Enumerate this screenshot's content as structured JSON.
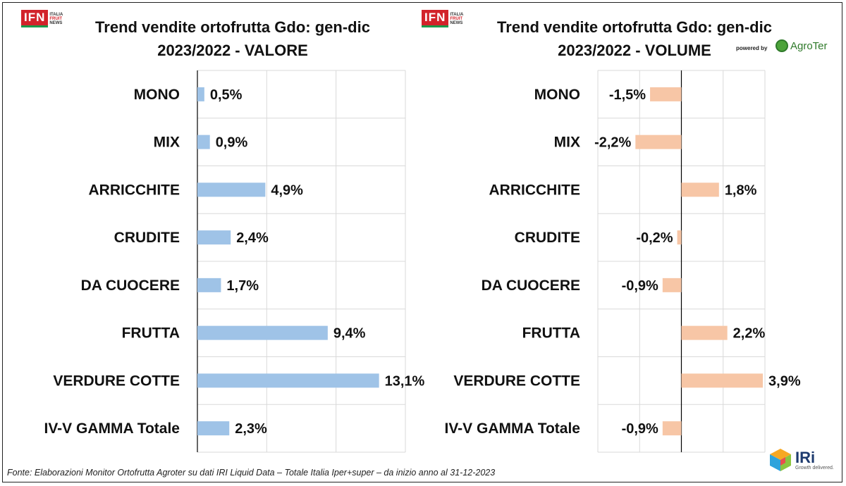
{
  "logo": {
    "main": "IFN",
    "sub_line1": "ITALIA",
    "sub_line2": "FRUIT",
    "sub_line3": "NEWS"
  },
  "powered_by": "powered by",
  "agroter": "AgroTer",
  "footnote": "Fonte: Elaborazioni Monitor Ortofrutta Agroter su dati IRI Liquid Data – Totale Italia Iper+super –  da inizio anno al 31-12-2023",
  "iri": {
    "name": "IRi",
    "tagline": "Growth delivered."
  },
  "colors": {
    "valore_bar": "#9fc3e7",
    "volume_bar": "#f7c6a6",
    "grid": "#d9d9d9",
    "axis": "#000000"
  },
  "chart_data": [
    {
      "type": "bar",
      "orientation": "horizontal",
      "title_line1": "Trend vendite ortofrutta Gdo: gen-dic",
      "title_line2": "2023/2022 - VALORE",
      "categories": [
        "MONO",
        "MIX",
        "ARRICCHITE",
        "CRUDITE",
        "DA CUOCERE",
        "FRUTTA",
        "VERDURE COTTE",
        "IV-V GAMMA Totale"
      ],
      "values": [
        0.5,
        0.9,
        4.9,
        2.4,
        1.7,
        9.4,
        13.1,
        2.3
      ],
      "data_labels": [
        "0,5%",
        "0,9%",
        "4,9%",
        "2,4%",
        "1,7%",
        "9,4%",
        "13,1%",
        "2,3%"
      ],
      "xlim": [
        0,
        15
      ],
      "grid": true
    },
    {
      "type": "bar",
      "orientation": "horizontal",
      "title_line1": "Trend vendite ortofrutta Gdo: gen-dic",
      "title_line2": "2023/2022 - VOLUME",
      "categories": [
        "MONO",
        "MIX",
        "ARRICCHITE",
        "CRUDITE",
        "DA CUOCERE",
        "FRUTTA",
        "VERDURE COTTE",
        "IV-V GAMMA Totale"
      ],
      "values": [
        -1.5,
        -2.2,
        1.8,
        -0.2,
        -0.9,
        2.2,
        3.9,
        -0.9
      ],
      "data_labels": [
        "-1,5%",
        "-2,2%",
        "1,8%",
        "-0,2%",
        "-0,9%",
        "2,2%",
        "3,9%",
        "-0,9%"
      ],
      "xlim": [
        -4,
        4
      ],
      "grid": true
    }
  ]
}
